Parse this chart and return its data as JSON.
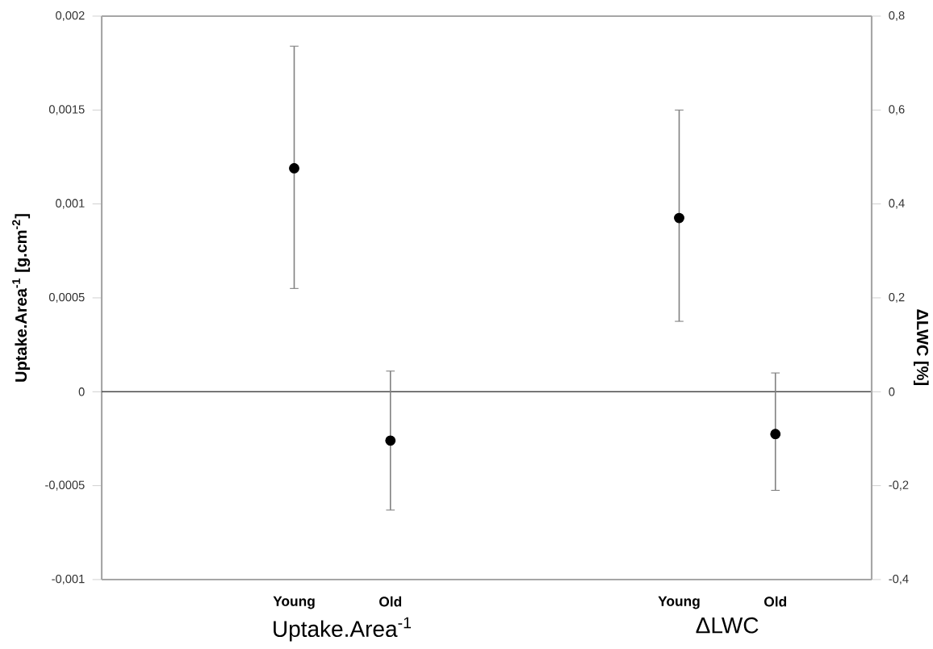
{
  "chart_data": {
    "type": "scatter",
    "categories": [
      null,
      null,
      "Young",
      "Old",
      null,
      null,
      "Young",
      "Old",
      null
    ],
    "series": [
      {
        "axis": "y",
        "color": "#000000",
        "values": [
          null,
          null,
          0.00119,
          -0.00026,
          null,
          null,
          null,
          null,
          null
        ],
        "errors": [
          null,
          null,
          [
            0.00055,
            0.00184
          ],
          [
            -0.00063,
            0.00011
          ],
          null,
          null,
          null,
          null,
          null
        ]
      },
      {
        "axis": "y2",
        "color": "#000000",
        "values": [
          null,
          null,
          null,
          null,
          null,
          null,
          0.37,
          -0.09,
          null
        ],
        "errors": [
          null,
          null,
          null,
          null,
          null,
          null,
          [
            0.15,
            0.6
          ],
          [
            -0.21,
            0.04
          ],
          null
        ]
      }
    ],
    "ylabel": "Uptake.Area$^{-1}$ [g.cm$^{-2}$]",
    "y2label": "ΔLWC [%]",
    "annotations": [
      "Uptake.Area$^{-1}$",
      "ΔLWC"
    ],
    "ylim": [
      -0.001,
      0.002
    ],
    "yticks": [
      {
        "value": -0.001,
        "label": "-0,001"
      },
      {
        "value": -0.0005,
        "label": "-0,0005"
      },
      0,
      {
        "value": 0.0005,
        "label": "0,0005"
      },
      {
        "value": 0.001,
        "label": "0,001"
      },
      {
        "value": 0.0015,
        "label": "0,0015"
      },
      {
        "value": 0.002,
        "label": "0,002"
      }
    ],
    "y2lim": [
      -0.4,
      0.8
    ],
    "y2ticks": [
      {
        "value": -0.4,
        "label": "-0,4"
      },
      {
        "value": -0.2,
        "label": "-0,2"
      },
      0,
      {
        "value": 0.2,
        "label": "0,2"
      },
      {
        "value": 0.4,
        "label": "0,4"
      },
      {
        "value": 0.6,
        "label": "0,6"
      },
      {
        "value": 0.8,
        "label": "0,8"
      }
    ],
    "ref_lines": [
      {
        "axis": "y",
        "value": 0
      }
    ],
    "marker": "circle",
    "grid": false
  }
}
